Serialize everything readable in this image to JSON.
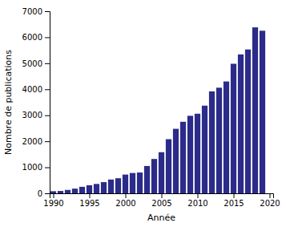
{
  "chart_data": {
    "type": "bar",
    "x": [
      1990,
      1991,
      1992,
      1993,
      1994,
      1995,
      1996,
      1997,
      1998,
      1999,
      2000,
      2001,
      2002,
      2003,
      2004,
      2005,
      2006,
      2007,
      2008,
      2009,
      2010,
      2011,
      2012,
      2013,
      2014,
      2015,
      2016,
      2017,
      2018,
      2019
    ],
    "values": [
      80,
      90,
      130,
      180,
      250,
      310,
      360,
      430,
      530,
      580,
      720,
      780,
      800,
      1050,
      1320,
      1580,
      2080,
      2480,
      2750,
      2980,
      3060,
      3370,
      3920,
      4060,
      4300,
      4980,
      5340,
      5530,
      6380,
      6250
    ],
    "color": "#2b2b8a",
    "xlabel": "Année",
    "ylabel": "Nombre de publications",
    "xlim": [
      1989.5,
      2020.5
    ],
    "ylim": [
      0,
      7000
    ],
    "xticks": [
      1990,
      1995,
      2000,
      2005,
      2010,
      2015,
      2020
    ],
    "yticks": [
      0,
      1000,
      2000,
      3000,
      4000,
      5000,
      6000,
      7000
    ],
    "grid": false
  }
}
